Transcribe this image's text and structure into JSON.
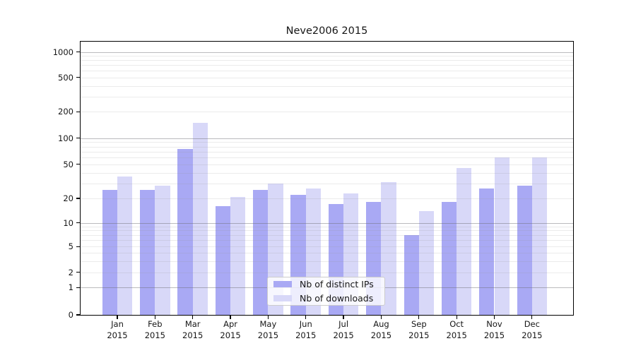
{
  "title": "Neve2006 2015",
  "chart_data": {
    "type": "bar",
    "title": "Neve2006 2015",
    "xlabel": "",
    "ylabel": "",
    "categories": [
      "Jan 2015",
      "Feb 2015",
      "Mar 2015",
      "Apr 2015",
      "May 2015",
      "Jun 2015",
      "Jul 2015",
      "Aug 2015",
      "Sep 2015",
      "Oct 2015",
      "Nov 2015",
      "Dec 2015"
    ],
    "x_tick_months": [
      "Jan",
      "Feb",
      "Mar",
      "Apr",
      "May",
      "Jun",
      "Jul",
      "Aug",
      "Sep",
      "Oct",
      "Nov",
      "Dec"
    ],
    "x_tick_year": "2015",
    "series": [
      {
        "name": "Nb of distinct IPs",
        "color": "#a9a9f4",
        "values": [
          25,
          25,
          75,
          16,
          25,
          22,
          17,
          18,
          7,
          18,
          26,
          28
        ]
      },
      {
        "name": "Nb of downloads",
        "color": "#d8d8f8",
        "values": [
          36,
          28,
          150,
          21,
          30,
          26,
          23,
          31,
          14,
          45,
          60,
          60
        ]
      }
    ],
    "yticks": [
      0,
      1,
      2,
      5,
      10,
      20,
      50,
      100,
      200,
      500,
      1000
    ],
    "yscale": "log above 1, compressed linear-log region between 0 and 10",
    "ylim": [
      0,
      1230
    ],
    "grid": true,
    "grid_major_values": [
      1,
      10,
      100,
      1000
    ],
    "legend_position": "lower center",
    "background_color": "#ffffff",
    "axis_color": "#000000"
  }
}
